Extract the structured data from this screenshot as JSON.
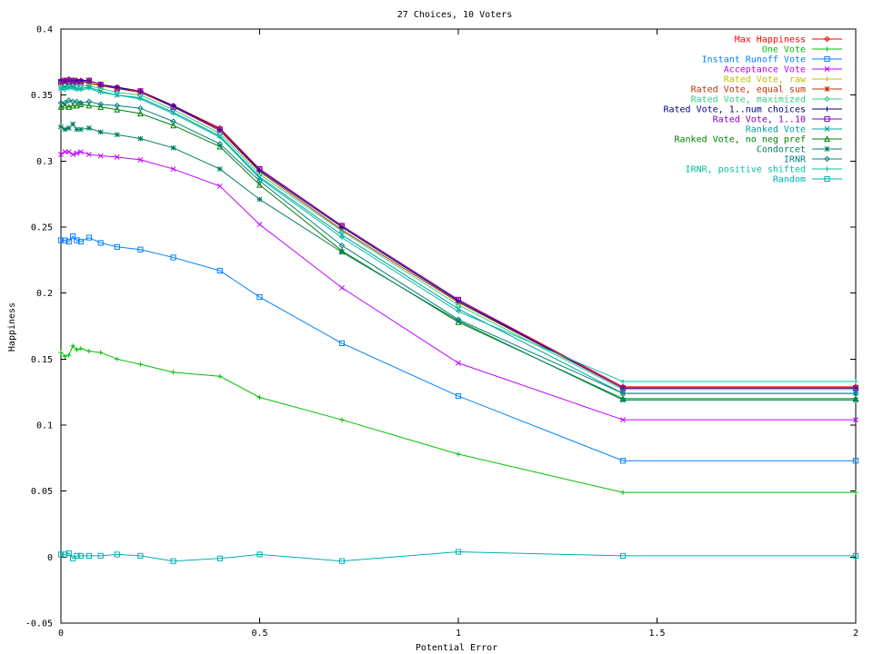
{
  "chart_data": {
    "type": "line",
    "title": "27 Choices, 10 Voters",
    "xlabel": "Potential Error",
    "ylabel": "Happiness",
    "xlim": [
      0,
      2
    ],
    "ylim": [
      -0.05,
      0.4
    ],
    "x_ticks": [
      {
        "value": 0,
        "label": "0"
      },
      {
        "value": 0.5,
        "label": "0.5"
      },
      {
        "value": 1,
        "label": "1"
      },
      {
        "value": 1.5,
        "label": "1.5"
      },
      {
        "value": 2,
        "label": "2"
      }
    ],
    "y_ticks": [
      {
        "value": -0.05,
        "label": "-0.05"
      },
      {
        "value": 0,
        "label": "0"
      },
      {
        "value": 0.05,
        "label": "0.05"
      },
      {
        "value": 0.1,
        "label": "0.1"
      },
      {
        "value": 0.15,
        "label": "0.15"
      },
      {
        "value": 0.2,
        "label": "0.2"
      },
      {
        "value": 0.25,
        "label": "0.25"
      },
      {
        "value": 0.3,
        "label": "0.3"
      },
      {
        "value": 0.35,
        "label": "0.35"
      },
      {
        "value": 0.4,
        "label": "0.4"
      }
    ],
    "grid": false,
    "legend_position": "top-right",
    "x": [
      0,
      0.01,
      0.02,
      0.03,
      0.04,
      0.05,
      0.0707,
      0.1,
      0.1414,
      0.2,
      0.2828,
      0.4,
      0.5,
      0.7071,
      1,
      1.4142,
      2
    ],
    "series": [
      {
        "name": "Max Happiness",
        "color": "#ff0000",
        "marker": "diamond",
        "values": [
          0.361,
          0.361,
          0.362,
          0.361,
          0.361,
          0.361,
          0.361,
          0.358,
          0.356,
          0.353,
          0.342,
          0.325,
          0.294,
          0.251,
          0.195,
          0.129,
          0.129
        ]
      },
      {
        "name": "One Vote",
        "color": "#00c000",
        "marker": "plus",
        "values": [
          0.155,
          0.152,
          0.153,
          0.16,
          0.157,
          0.158,
          0.156,
          0.155,
          0.15,
          0.146,
          0.14,
          0.137,
          0.121,
          0.104,
          0.078,
          0.049,
          0.049
        ]
      },
      {
        "name": "Instant Runoff Vote",
        "color": "#0080ff",
        "marker": "square",
        "values": [
          0.24,
          0.24,
          0.239,
          0.243,
          0.24,
          0.239,
          0.242,
          0.238,
          0.235,
          0.233,
          0.227,
          0.217,
          0.197,
          0.162,
          0.122,
          0.073,
          0.073
        ]
      },
      {
        "name": "Acceptance Vote",
        "color": "#c000ff",
        "marker": "x",
        "values": [
          0.305,
          0.307,
          0.307,
          0.305,
          0.306,
          0.307,
          0.305,
          0.304,
          0.303,
          0.301,
          0.294,
          0.281,
          0.252,
          0.204,
          0.147,
          0.104,
          0.104
        ]
      },
      {
        "name": "Rated Vote, raw",
        "color": "#c0c000",
        "marker": "plus",
        "values": [
          0.36,
          0.36,
          0.36,
          0.36,
          0.36,
          0.36,
          0.36,
          0.357,
          0.355,
          0.352,
          0.341,
          0.324,
          0.293,
          0.25,
          0.194,
          0.128,
          0.128
        ]
      },
      {
        "name": "Rated Vote, equal sum",
        "color": "#c03000",
        "marker": "star",
        "values": [
          0.359,
          0.36,
          0.36,
          0.359,
          0.36,
          0.36,
          0.359,
          0.357,
          0.355,
          0.352,
          0.341,
          0.323,
          0.292,
          0.248,
          0.193,
          0.128,
          0.128
        ]
      },
      {
        "name": "Rated Vote, maximized",
        "color": "#30d080",
        "marker": "diamond",
        "values": [
          0.357,
          0.357,
          0.358,
          0.357,
          0.357,
          0.357,
          0.357,
          0.355,
          0.352,
          0.35,
          0.339,
          0.321,
          0.29,
          0.247,
          0.191,
          0.127,
          0.127
        ]
      },
      {
        "name": "Rated Vote, 1..num choices",
        "color": "#000080",
        "marker": "plus",
        "values": [
          0.361,
          0.361,
          0.362,
          0.361,
          0.361,
          0.361,
          0.361,
          0.358,
          0.356,
          0.353,
          0.342,
          0.324,
          0.293,
          0.25,
          0.194,
          0.128,
          0.128
        ]
      },
      {
        "name": "Rated Vote, 1..10",
        "color": "#8000c0",
        "marker": "square",
        "values": [
          0.36,
          0.361,
          0.36,
          0.361,
          0.36,
          0.36,
          0.361,
          0.358,
          0.355,
          0.353,
          0.341,
          0.324,
          0.294,
          0.251,
          0.195,
          0.128,
          0.128
        ]
      },
      {
        "name": "Ranked Vote",
        "color": "#00a0a0",
        "marker": "x",
        "values": [
          0.355,
          0.356,
          0.356,
          0.356,
          0.355,
          0.355,
          0.356,
          0.353,
          0.35,
          0.348,
          0.337,
          0.319,
          0.288,
          0.244,
          0.188,
          0.124,
          0.124
        ]
      },
      {
        "name": "Ranked Vote, no neg pref",
        "color": "#008000",
        "marker": "triangle",
        "values": [
          0.341,
          0.342,
          0.341,
          0.342,
          0.342,
          0.343,
          0.342,
          0.341,
          0.339,
          0.336,
          0.327,
          0.311,
          0.282,
          0.232,
          0.178,
          0.12,
          0.12
        ]
      },
      {
        "name": "Condorcet",
        "color": "#008060",
        "marker": "star",
        "values": [
          0.326,
          0.324,
          0.325,
          0.328,
          0.324,
          0.324,
          0.325,
          0.322,
          0.32,
          0.317,
          0.31,
          0.294,
          0.271,
          0.231,
          0.179,
          0.119,
          0.119
        ]
      },
      {
        "name": "IRNR",
        "color": "#008080",
        "marker": "diamond",
        "values": [
          0.344,
          0.344,
          0.346,
          0.345,
          0.345,
          0.344,
          0.345,
          0.343,
          0.342,
          0.34,
          0.33,
          0.313,
          0.285,
          0.236,
          0.18,
          0.124,
          0.124
        ]
      },
      {
        "name": "IRNR, positive shifted",
        "color": "#00c0a0",
        "marker": "plus",
        "values": [
          0.355,
          0.354,
          0.355,
          0.355,
          0.354,
          0.354,
          0.355,
          0.352,
          0.35,
          0.347,
          0.336,
          0.318,
          0.287,
          0.242,
          0.186,
          0.133,
          0.133
        ]
      },
      {
        "name": "Random",
        "color": "#00b0b0",
        "marker": "square",
        "values": [
          0.002,
          0.002,
          0.003,
          -0.001,
          0.001,
          0.001,
          0.001,
          0.001,
          0.002,
          0.001,
          -0.003,
          -0.001,
          0.002,
          -0.003,
          0.004,
          0.001,
          0.001
        ]
      }
    ]
  }
}
